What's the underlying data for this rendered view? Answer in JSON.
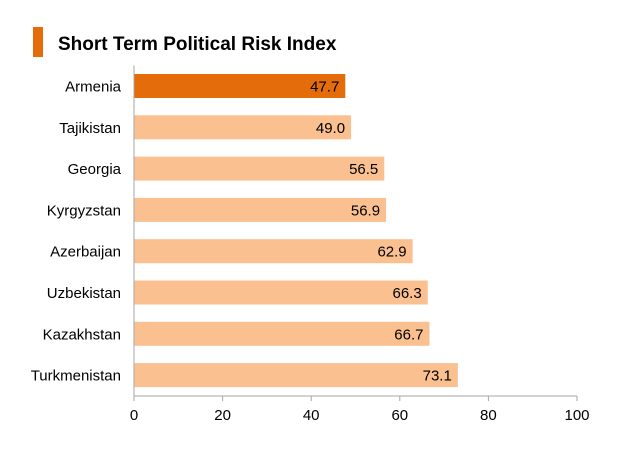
{
  "colors": {
    "title_marker": "#E46C0A",
    "highlight_bar": "#E46C0A",
    "bar": "#FAC090",
    "axis": "#A6A6A6",
    "text": "#000000"
  },
  "chart_data": {
    "type": "bar",
    "orientation": "horizontal",
    "title": "Short Term Political Risk Index",
    "categories": [
      "Armenia",
      "Tajikistan",
      "Georgia",
      "Kyrgyzstan",
      "Azerbaijan",
      "Uzbekistan",
      "Kazakhstan",
      "Turkmenistan"
    ],
    "values": [
      47.7,
      49.0,
      56.5,
      56.9,
      62.9,
      66.3,
      66.7,
      73.1
    ],
    "value_labels": [
      "47.7",
      "49.0",
      "56.5",
      "56.9",
      "62.9",
      "66.3",
      "66.7",
      "73.1"
    ],
    "highlight_category": "Armenia",
    "xlim": [
      0,
      100
    ],
    "xticks": [
      0,
      20,
      40,
      60,
      80,
      100
    ],
    "xlabel": "",
    "ylabel": "",
    "grid": false,
    "legend": "none"
  }
}
